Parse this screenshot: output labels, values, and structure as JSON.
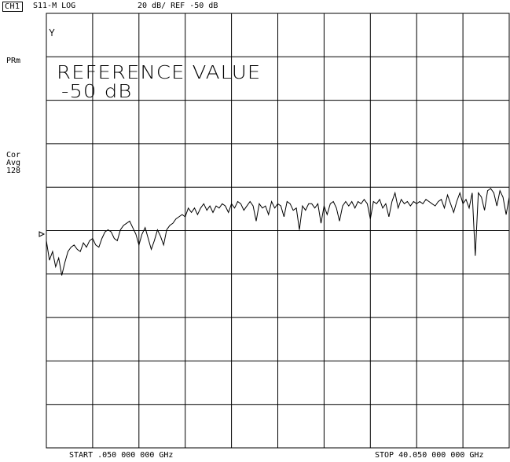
{
  "header": {
    "channel": "CH1",
    "measurement": "S11-M LOG",
    "scale": "20 dB/ REF -50 dB"
  },
  "side_labels": {
    "prm": "PRm",
    "cor": "Cor",
    "avg": "Avg",
    "avg_count": "128"
  },
  "overlay": {
    "line1": "REFERENCE VALUE",
    "line2": "-50 dB"
  },
  "footer": {
    "start": "START .050 000 000 GHz",
    "stop": "STOP 40.050 000 000 GHz"
  },
  "colors": {
    "trace": "#000000",
    "grid": "#000000",
    "background": "#ffffff"
  },
  "chart_data": {
    "type": "line",
    "x_range_ghz": [
      0.05,
      40.05
    ],
    "ref_value_db": -50,
    "scale_db_per_div": 20,
    "grid_divisions": [
      10,
      10
    ],
    "grid": true,
    "series": [
      {
        "trace_db": [
          -53,
          -62,
          -58,
          -65,
          -61,
          -69,
          -63,
          -58,
          -56,
          -55,
          -57,
          -58,
          -54,
          -56,
          -53,
          -52,
          -55,
          -56,
          -52,
          -49,
          -48,
          -49,
          -52,
          -53,
          -48,
          -46,
          -45,
          -44,
          -47,
          -50,
          -55,
          -50,
          -47,
          -52,
          -57,
          -53,
          -48,
          -51,
          -55,
          -48,
          -46,
          -45,
          -43,
          -42,
          -41,
          -42,
          -38,
          -40,
          -38,
          -41,
          -38,
          -36,
          -39,
          -37,
          -40,
          -37,
          -38,
          -36,
          -37,
          -40,
          -36,
          -38,
          -35,
          -36,
          -39,
          -37,
          -35,
          -37,
          -44,
          -36,
          -38,
          -37,
          -41,
          -35,
          -38,
          -36,
          -37,
          -42,
          -35,
          -36,
          -39,
          -38,
          -48,
          -37,
          -39,
          -36,
          -36,
          -38,
          -36,
          -45,
          -37,
          -41,
          -36,
          -35,
          -38,
          -44,
          -37,
          -35,
          -37,
          -35,
          -38,
          -35,
          -36,
          -34,
          -36,
          -43,
          -35,
          -36,
          -34,
          -38,
          -36,
          -42,
          -35,
          -31,
          -38,
          -34,
          -36,
          -35,
          -37,
          -35,
          -36,
          -35,
          -36,
          -34,
          -35,
          -36,
          -37,
          -35,
          -34,
          -38,
          -32,
          -36,
          -40,
          -35,
          -31,
          -36,
          -34,
          -38,
          -31,
          -60,
          -31,
          -33,
          -39,
          -30,
          -29,
          -31,
          -37,
          -30,
          -33,
          -41,
          -33
        ]
      }
    ]
  }
}
